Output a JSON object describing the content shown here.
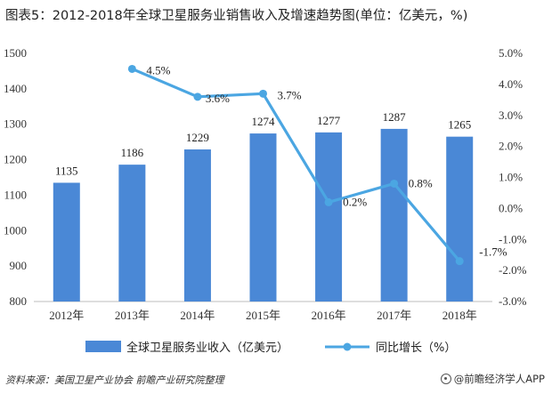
{
  "title": "图表5：2012-2018年全球卫星服务业销售收入及增速趋势图(单位：亿美元，%)",
  "source": "资料来源：美国卫星产业协会 前瞻产业研究院整理",
  "brand": "@前瞻经济学人APP",
  "colors": {
    "bar": "#4A88D6",
    "line": "#4BA6E2"
  },
  "chart_data": {
    "type": "bar",
    "categories": [
      "2012年",
      "2013年",
      "2014年",
      "2015年",
      "2016年",
      "2017年",
      "2018年"
    ],
    "series": [
      {
        "name": "全球卫星服务业收入（亿美元）",
        "type": "bar",
        "axis": "left",
        "values": [
          1135,
          1186,
          1229,
          1274,
          1277,
          1287,
          1265
        ],
        "labels": [
          "1135",
          "1186",
          "1229",
          "1274",
          "1277",
          "1287",
          "1265"
        ]
      },
      {
        "name": "同比增长（%）",
        "type": "line",
        "axis": "right",
        "values": [
          null,
          4.5,
          3.6,
          3.7,
          0.2,
          0.8,
          -1.7
        ],
        "labels": [
          "",
          "4.5%",
          "3.6%",
          "3.7%",
          "0.2%",
          "0.8%",
          "-1.7%"
        ]
      }
    ],
    "y_left": {
      "min": 800,
      "max": 1500,
      "step": 100,
      "ticks": [
        "800",
        "900",
        "1000",
        "1100",
        "1200",
        "1300",
        "1400",
        "1500"
      ]
    },
    "y_right": {
      "min": -3.0,
      "max": 5.0,
      "step": 1.0,
      "ticks": [
        "-3.0%",
        "-2.0%",
        "-1.0%",
        "0.0%",
        "1.0%",
        "2.0%",
        "3.0%",
        "4.0%",
        "5.0%"
      ]
    },
    "grid": false,
    "legend_position": "bottom"
  }
}
